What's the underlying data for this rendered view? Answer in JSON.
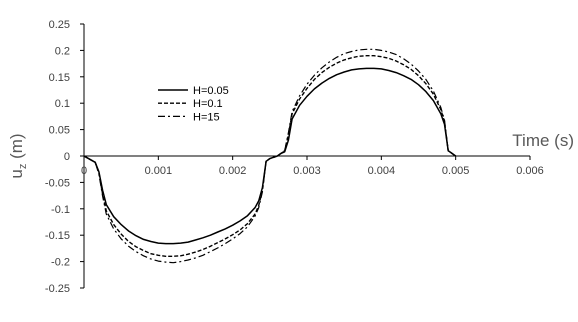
{
  "chart_data": {
    "type": "line",
    "xlabel": "Time (s)",
    "ylabel_main": "u",
    "ylabel_sub": "z",
    "ylabel_unit": " (m)",
    "xlim": [
      0,
      0.006
    ],
    "ylim": [
      -0.25,
      0.25
    ],
    "x_ticks": [
      "0",
      "0.001",
      "0.002",
      "0.003",
      "0.004",
      "0.005",
      "0.006"
    ],
    "y_ticks": [
      "0.25",
      "0.2",
      "0.15",
      "0.1",
      "0.05",
      "0",
      "-0.05",
      "-0.1",
      "-0.15",
      "-0.2",
      "-0.25"
    ],
    "grid": false,
    "legend_position": "left",
    "series": [
      {
        "name": "H=0.05",
        "style": "solid",
        "x": [
          0,
          0.0001,
          0.00015,
          0.0002,
          0.00025,
          0.0003,
          0.0004,
          0.0005,
          0.0006,
          0.0007,
          0.0008,
          0.0009,
          0.001,
          0.0011,
          0.0012,
          0.0013,
          0.0014,
          0.0015,
          0.0016,
          0.0017,
          0.0018,
          0.0019,
          0.002,
          0.0021,
          0.0022,
          0.0023,
          0.00235,
          0.0024,
          0.00245,
          0.0025,
          0.0026,
          0.00265,
          0.0027,
          0.00275,
          0.0028,
          0.0029,
          0.003,
          0.0031,
          0.0032,
          0.0033,
          0.0034,
          0.0035,
          0.0036,
          0.0037,
          0.0038,
          0.0039,
          0.004,
          0.0041,
          0.0042,
          0.0043,
          0.0044,
          0.0045,
          0.0046,
          0.0047,
          0.0048,
          0.00485,
          0.0049,
          0.00495,
          0.005
        ],
        "y": [
          0,
          -0.008,
          -0.012,
          -0.03,
          -0.065,
          -0.092,
          -0.115,
          -0.13,
          -0.142,
          -0.151,
          -0.158,
          -0.162,
          -0.165,
          -0.166,
          -0.166,
          -0.165,
          -0.163,
          -0.159,
          -0.155,
          -0.15,
          -0.144,
          -0.138,
          -0.131,
          -0.123,
          -0.113,
          -0.098,
          -0.085,
          -0.06,
          -0.01,
          -0.005,
          0,
          0.005,
          0.008,
          0.03,
          0.07,
          0.096,
          0.113,
          0.127,
          0.138,
          0.147,
          0.154,
          0.159,
          0.163,
          0.165,
          0.166,
          0.166,
          0.165,
          0.162,
          0.158,
          0.152,
          0.145,
          0.135,
          0.122,
          0.105,
          0.08,
          0.06,
          0.01,
          0.005,
          0
        ]
      },
      {
        "name": "H=0.1",
        "style": "dashed",
        "x": [
          0,
          0.0001,
          0.00015,
          0.0002,
          0.00025,
          0.0003,
          0.0004,
          0.0005,
          0.0006,
          0.0007,
          0.0008,
          0.0009,
          0.001,
          0.0011,
          0.0012,
          0.0013,
          0.0014,
          0.0015,
          0.0016,
          0.0017,
          0.0018,
          0.0019,
          0.002,
          0.0021,
          0.0022,
          0.0023,
          0.00235,
          0.0024,
          0.00245,
          0.0025,
          0.0026,
          0.00265,
          0.0027,
          0.00275,
          0.0028,
          0.0029,
          0.003,
          0.0031,
          0.0032,
          0.0033,
          0.0034,
          0.0035,
          0.0036,
          0.0037,
          0.0038,
          0.0039,
          0.004,
          0.0041,
          0.0042,
          0.0043,
          0.0044,
          0.0045,
          0.0046,
          0.0047,
          0.0048,
          0.00485,
          0.0049,
          0.00495,
          0.005
        ],
        "y": [
          0,
          -0.008,
          -0.012,
          -0.032,
          -0.072,
          -0.104,
          -0.13,
          -0.148,
          -0.162,
          -0.172,
          -0.179,
          -0.185,
          -0.188,
          -0.19,
          -0.19,
          -0.189,
          -0.186,
          -0.182,
          -0.177,
          -0.171,
          -0.164,
          -0.157,
          -0.149,
          -0.14,
          -0.128,
          -0.11,
          -0.094,
          -0.065,
          -0.01,
          -0.005,
          0,
          0.005,
          0.01,
          0.04,
          0.08,
          0.108,
          0.128,
          0.145,
          0.158,
          0.168,
          0.176,
          0.182,
          0.186,
          0.189,
          0.19,
          0.19,
          0.188,
          0.185,
          0.18,
          0.173,
          0.164,
          0.152,
          0.137,
          0.117,
          0.088,
          0.065,
          0.01,
          0.005,
          0
        ]
      },
      {
        "name": "H=15",
        "style": "dashdot",
        "x": [
          0,
          0.0001,
          0.00015,
          0.0002,
          0.00025,
          0.0003,
          0.0004,
          0.0005,
          0.0006,
          0.0007,
          0.0008,
          0.0009,
          0.001,
          0.0011,
          0.0012,
          0.0013,
          0.0014,
          0.0015,
          0.0016,
          0.0017,
          0.0018,
          0.0019,
          0.002,
          0.0021,
          0.0022,
          0.0023,
          0.00235,
          0.0024,
          0.00245,
          0.0025,
          0.0026,
          0.00265,
          0.0027,
          0.00275,
          0.0028,
          0.0029,
          0.003,
          0.0031,
          0.0032,
          0.0033,
          0.0034,
          0.0035,
          0.0036,
          0.0037,
          0.0038,
          0.0039,
          0.004,
          0.0041,
          0.0042,
          0.0043,
          0.0044,
          0.0045,
          0.0046,
          0.0047,
          0.0048,
          0.00485,
          0.0049,
          0.00495,
          0.005
        ],
        "y": [
          0,
          -0.008,
          -0.012,
          -0.034,
          -0.076,
          -0.11,
          -0.138,
          -0.157,
          -0.171,
          -0.181,
          -0.189,
          -0.195,
          -0.199,
          -0.201,
          -0.202,
          -0.2,
          -0.197,
          -0.193,
          -0.188,
          -0.181,
          -0.174,
          -0.166,
          -0.157,
          -0.147,
          -0.134,
          -0.114,
          -0.098,
          -0.068,
          -0.01,
          -0.005,
          0,
          0.005,
          0.01,
          0.044,
          0.084,
          0.114,
          0.136,
          0.153,
          0.167,
          0.178,
          0.187,
          0.194,
          0.198,
          0.201,
          0.202,
          0.202,
          0.2,
          0.197,
          0.192,
          0.184,
          0.174,
          0.161,
          0.145,
          0.123,
          0.092,
          0.068,
          0.01,
          0.005,
          0
        ]
      }
    ]
  }
}
